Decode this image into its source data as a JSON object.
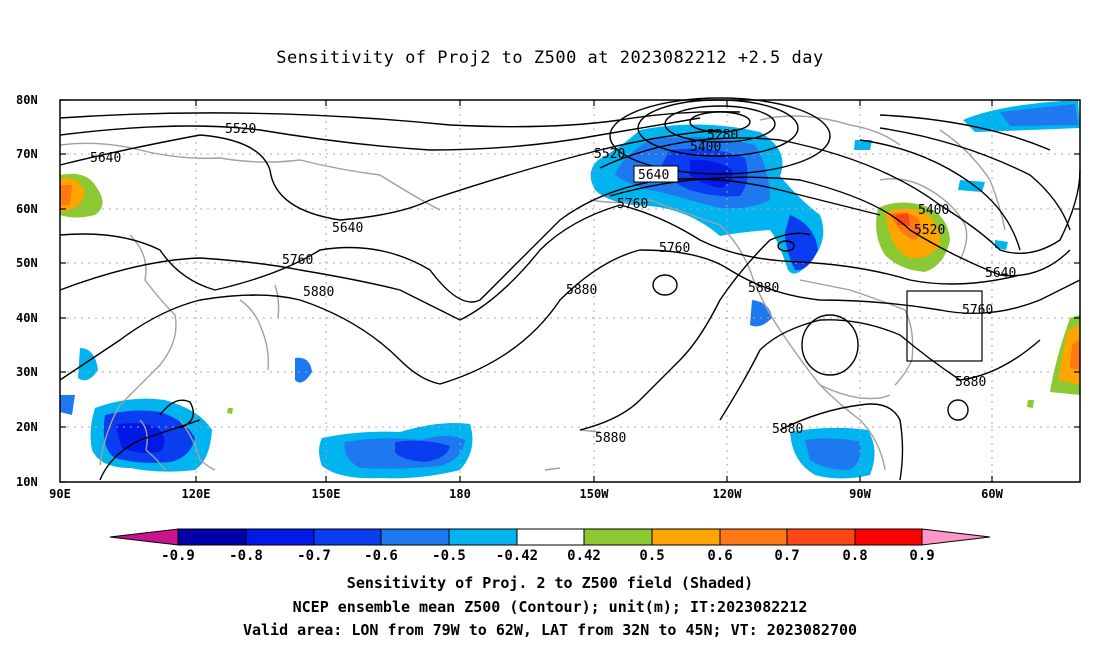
{
  "title": "Sensitivity of Proj2 to Z500 at 2023082212 +2.5 day",
  "lat_labels": [
    "80N",
    "70N",
    "60N",
    "50N",
    "40N",
    "30N",
    "20N",
    "10N"
  ],
  "lon_labels": [
    "90E",
    "120E",
    "150E",
    "180",
    "150W",
    "120W",
    "90W",
    "60W"
  ],
  "contour_labels": [
    "5520",
    "5640",
    "5640",
    "5760",
    "5880",
    "5520",
    "5400",
    "5280",
    "5640",
    "5760",
    "5760",
    "5880",
    "5880",
    "5880",
    "5880",
    "5400",
    "5520",
    "5640",
    "5760",
    "5880"
  ],
  "colorbar": {
    "labels": [
      "-0.9",
      "-0.8",
      "-0.7",
      "-0.6",
      "-0.5",
      "-0.42",
      "0.42",
      "0.5",
      "0.6",
      "0.7",
      "0.8",
      "0.9"
    ],
    "colors": [
      "#c8148c",
      "#0000a8",
      "#0019e6",
      "#0a3cf0",
      "#1e78f0",
      "#00b4f0",
      "#ffffff",
      "#8cc832",
      "#ffa500",
      "#ff7814",
      "#ff4614",
      "#ff0000",
      "#ff96c8"
    ]
  },
  "valid_box": {
    "lon_w": -79,
    "lon_e": -62,
    "lat_s": 32,
    "lat_n": 45
  },
  "captions": [
    "Sensitivity of Proj. 2 to Z500 field (Shaded)",
    "NCEP ensemble mean Z500 (Contour); unit(m); IT:2023082212",
    "Valid area: LON from 79W to 62W, LAT from 32N to 45N; VT: 2023082700"
  ]
}
